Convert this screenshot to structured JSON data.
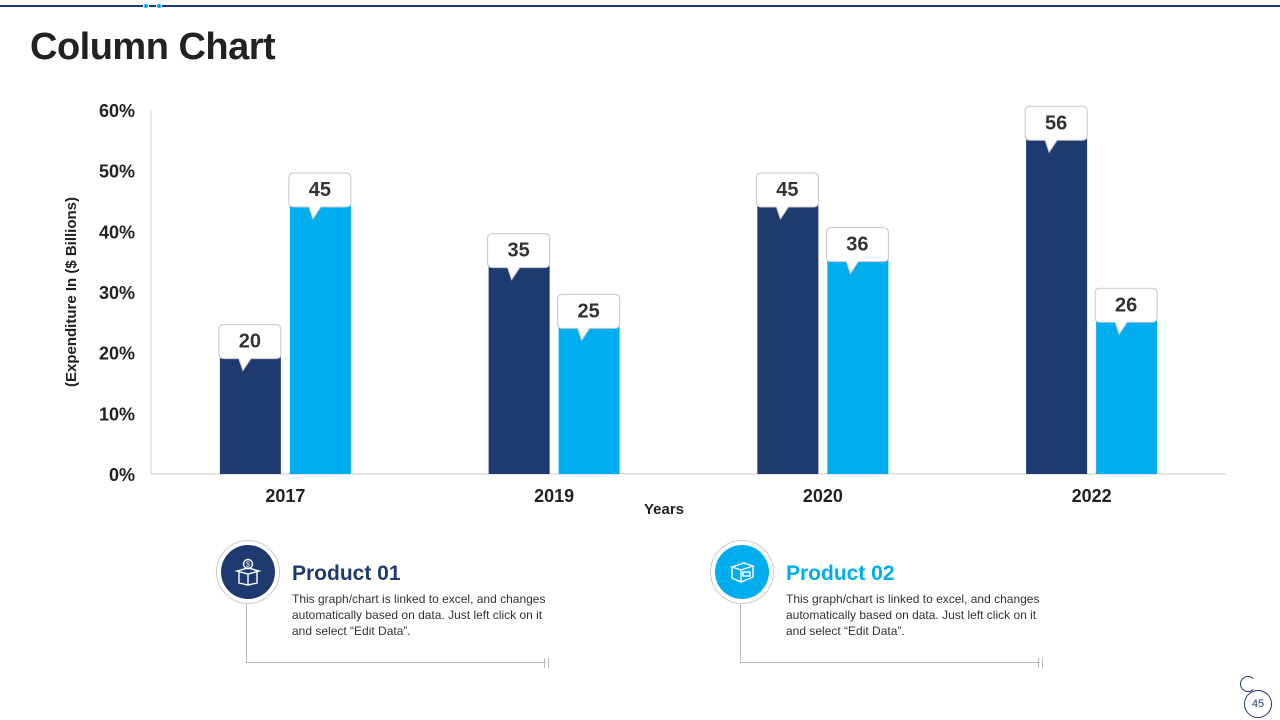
{
  "page": {
    "title": "Column Chart",
    "page_number": "45"
  },
  "colors": {
    "series1": "#1f3a6e",
    "series2": "#00aeef",
    "axis": "#cccccc"
  },
  "chart_data": {
    "type": "bar",
    "title": "",
    "xlabel": "Years",
    "ylabel": "(Expenditure In ($ Billions)",
    "ylim": [
      0,
      60
    ],
    "y_tick_labels": [
      "0%",
      "10%",
      "20%",
      "30%",
      "40%",
      "50%",
      "60%"
    ],
    "categories": [
      "2017",
      "2019",
      "2020",
      "2022"
    ],
    "series": [
      {
        "name": "Product 01",
        "values": [
          20,
          35,
          45,
          56
        ]
      },
      {
        "name": "Product 02",
        "values": [
          45,
          25,
          36,
          26
        ]
      }
    ]
  },
  "products": [
    {
      "title": "Product 01",
      "description": "This graph/chart is linked to excel, and changes automatically based on data. Just left click on it and select “Edit Data”.",
      "icon": "money-box-icon"
    },
    {
      "title": "Product 02",
      "description": "This graph/chart is linked to excel, and changes automatically based on data. Just left click on it and select “Edit Data”.",
      "icon": "package-box-icon"
    }
  ]
}
